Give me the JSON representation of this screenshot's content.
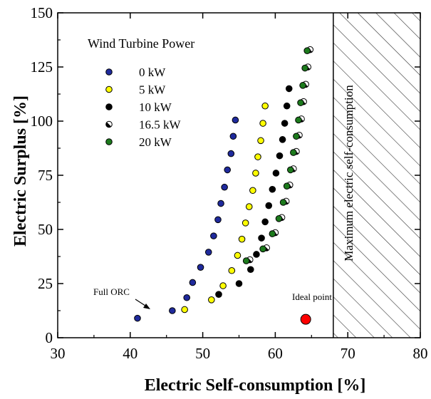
{
  "chart_data": {
    "type": "scatter",
    "title": "",
    "xlabel": "Electric Self-consumption [%]",
    "ylabel": "Electric Surplus [%]",
    "xlim": [
      30,
      80
    ],
    "ylim": [
      0,
      150
    ],
    "xticks": [
      "30",
      "40",
      "50",
      "60",
      "70",
      "80"
    ],
    "yticks": [
      "0",
      "25",
      "50",
      "75",
      "100",
      "125",
      "150"
    ],
    "grid": false,
    "legend": {
      "title": "Wind Turbine Power",
      "placement": "top-left"
    },
    "series": [
      {
        "name": "0 kW",
        "color": "#1f2a9c",
        "points": [
          [
            45.8,
            12.5
          ],
          [
            47.8,
            18.5
          ],
          [
            48.6,
            25.5
          ],
          [
            49.7,
            32.5
          ],
          [
            50.8,
            39.5
          ],
          [
            51.5,
            47
          ],
          [
            52.1,
            54.5
          ],
          [
            52.5,
            62
          ],
          [
            53.0,
            69.5
          ],
          [
            53.4,
            77.5
          ],
          [
            53.9,
            85
          ],
          [
            54.2,
            93
          ],
          [
            54.5,
            100.5
          ]
        ]
      },
      {
        "name": "5 kW",
        "color": "#ffff00",
        "points": [
          [
            47.5,
            13
          ],
          [
            51.2,
            17.5
          ],
          [
            52.8,
            24
          ],
          [
            54.0,
            31
          ],
          [
            54.8,
            38
          ],
          [
            55.4,
            45.5
          ],
          [
            55.9,
            53
          ],
          [
            56.4,
            60.5
          ],
          [
            56.9,
            68
          ],
          [
            57.3,
            76
          ],
          [
            57.6,
            83.5
          ],
          [
            58.0,
            91
          ],
          [
            58.3,
            99
          ],
          [
            58.6,
            107
          ]
        ]
      },
      {
        "name": "10 kW",
        "color": "#000000",
        "points": [
          [
            52.2,
            20
          ],
          [
            55.0,
            25
          ],
          [
            56.6,
            31.5
          ],
          [
            57.4,
            38.5
          ],
          [
            58.1,
            46
          ],
          [
            58.6,
            53.5
          ],
          [
            59.1,
            61
          ],
          [
            59.6,
            68.5
          ],
          [
            60.1,
            76
          ],
          [
            60.6,
            84
          ],
          [
            61.0,
            91.5
          ],
          [
            61.3,
            99
          ],
          [
            61.6,
            107
          ],
          [
            61.9,
            115
          ]
        ]
      },
      {
        "name": "16.5 kW",
        "color": "#ffffff",
        "points": [
          [
            56.5,
            36
          ],
          [
            58.8,
            41.5
          ],
          [
            60.0,
            48.5
          ],
          [
            60.9,
            55.5
          ],
          [
            61.5,
            63
          ],
          [
            62.0,
            70.5
          ],
          [
            62.5,
            78
          ],
          [
            62.9,
            86
          ],
          [
            63.3,
            93.5
          ],
          [
            63.6,
            101
          ],
          [
            63.9,
            109
          ],
          [
            64.2,
            117
          ],
          [
            64.5,
            125
          ],
          [
            64.8,
            133
          ]
        ]
      },
      {
        "name": "20 kW",
        "color": "#1c7a1c",
        "points": [
          [
            56.0,
            35.5
          ],
          [
            58.3,
            41
          ],
          [
            59.6,
            48
          ],
          [
            60.5,
            55
          ],
          [
            61.1,
            62.5
          ],
          [
            61.6,
            70
          ],
          [
            62.1,
            77.5
          ],
          [
            62.5,
            85.5
          ],
          [
            62.9,
            93
          ],
          [
            63.2,
            100.5
          ],
          [
            63.5,
            108.5
          ],
          [
            63.8,
            116.5
          ],
          [
            64.1,
            124.5
          ],
          [
            64.4,
            132.5
          ]
        ]
      }
    ],
    "highlight_points": [
      {
        "label": "Full ORC",
        "x": 41.0,
        "y": 9,
        "color": "#1f2a9c"
      },
      {
        "label": "Ideal point",
        "x": 64.2,
        "y": 8.5,
        "color": "#ff0000"
      }
    ],
    "shaded_region": {
      "label": "Maximum electric self-consumption",
      "x_from": 68,
      "x_to": 80,
      "pattern": "diagonal hatch"
    }
  }
}
